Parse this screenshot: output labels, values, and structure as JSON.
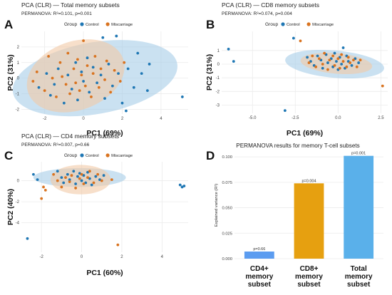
{
  "colors": {
    "control": "#1f77b4",
    "miscarriage": "#d9731f",
    "ellipse_control": "#a6cde8",
    "ellipse_miscarriage": "#f2c9a6",
    "grid": "#ebebeb",
    "bar_cd4": "#5b9cf0",
    "bar_cd8": "#e6a010",
    "bar_total": "#5ab0ea"
  },
  "legend": {
    "title": "Group",
    "items": [
      {
        "label": "Control",
        "color_key": "control"
      },
      {
        "label": "Miscarriage",
        "color_key": "miscarriage"
      }
    ]
  },
  "chart_data": [
    {
      "type": "scatter",
      "panel_letter": "A",
      "title": "PCA (CLR) — Total memory subsets",
      "subtitle": "PERMANOVA: R²=0.101, p=0.001",
      "xlabel": "PC1 (69%)",
      "ylabel": "PC2 (31%)",
      "xlim": [
        -3.2,
        5.4
      ],
      "ylim": [
        -2.3,
        3.0
      ],
      "xticks": [
        -2,
        0,
        2,
        4
      ],
      "yticks": [
        -2,
        -1,
        0,
        1,
        2
      ],
      "grid": true,
      "legend_position": "top",
      "ellipses": [
        {
          "group": "Control",
          "cx": 0.6,
          "cy": 0.0,
          "rx": 4.3,
          "ry": 2.3,
          "angle": 10
        },
        {
          "group": "Miscarriage",
          "cx": -0.4,
          "cy": 0.15,
          "rx": 2.6,
          "ry": 2.2,
          "angle": 20
        }
      ],
      "series": [
        {
          "name": "Control",
          "points": [
            [
              -2.3,
              -0.6
            ],
            [
              -1.9,
              0.3
            ],
            [
              -1.7,
              -1.1
            ],
            [
              -1.5,
              -0.4
            ],
            [
              -1.3,
              0.6
            ],
            [
              -1.0,
              -1.6
            ],
            [
              -0.8,
              0.2
            ],
            [
              -0.6,
              -0.7
            ],
            [
              -0.4,
              1.0
            ],
            [
              -0.3,
              -1.4
            ],
            [
              -0.1,
              0.4
            ],
            [
              0.0,
              -0.2
            ],
            [
              0.2,
              1.3
            ],
            [
              0.3,
              -0.9
            ],
            [
              0.5,
              0.7
            ],
            [
              0.7,
              -0.3
            ],
            [
              0.9,
              0.2
            ],
            [
              1.0,
              2.6
            ],
            [
              1.1,
              -1.3
            ],
            [
              1.3,
              0.9
            ],
            [
              1.5,
              -0.5
            ],
            [
              1.7,
              2.7
            ],
            [
              1.8,
              0.3
            ],
            [
              2.0,
              -1.6
            ],
            [
              2.2,
              -2.1
            ],
            [
              2.3,
              0.6
            ],
            [
              2.6,
              -0.6
            ],
            [
              2.8,
              1.6
            ],
            [
              3.0,
              0.3
            ],
            [
              3.3,
              -0.8
            ],
            [
              3.4,
              0.9
            ],
            [
              5.1,
              -1.2
            ]
          ]
        },
        {
          "name": "Miscarriage",
          "points": [
            [
              -2.6,
              -0.2
            ],
            [
              -2.4,
              0.4
            ],
            [
              -2.0,
              -0.8
            ],
            [
              -1.8,
              1.4
            ],
            [
              -1.6,
              0.0
            ],
            [
              -1.4,
              -1.2
            ],
            [
              -1.2,
              1.0
            ],
            [
              -1.1,
              0.1
            ],
            [
              -0.9,
              -0.4
            ],
            [
              -0.8,
              1.6
            ],
            [
              -0.7,
              -1.0
            ],
            [
              -0.5,
              0.6
            ],
            [
              -0.4,
              -0.3
            ],
            [
              -0.3,
              1.2
            ],
            [
              -0.2,
              -0.8
            ],
            [
              -0.1,
              0.2
            ],
            [
              0.0,
              2.4
            ],
            [
              0.1,
              -0.5
            ],
            [
              0.2,
              0.8
            ],
            [
              0.4,
              -1.2
            ],
            [
              0.5,
              0.3
            ],
            [
              0.6,
              1.4
            ],
            [
              0.8,
              -0.6
            ],
            [
              0.9,
              0.6
            ],
            [
              1.1,
              -0.1
            ],
            [
              1.2,
              1.1
            ],
            [
              1.4,
              -0.9
            ],
            [
              1.6,
              0.5
            ],
            [
              1.9,
              -0.2
            ],
            [
              2.1,
              1.0
            ]
          ]
        }
      ]
    },
    {
      "type": "scatter",
      "panel_letter": "B",
      "title": "PCA (CLR) — CD8 memory subsets",
      "subtitle": "PERMANOVA: R²=0.074, p=0.004",
      "xlabel": "PC1 (69%)",
      "ylabel": "PC2 (31%)",
      "xlim": [
        -6.8,
        2.9
      ],
      "ylim": [
        -3.6,
        2.4
      ],
      "xticks": [
        -5.0,
        -2.5,
        0.0,
        2.5
      ],
      "xtick_labels": [
        "-5.0",
        "-2.5",
        "0.0",
        "2.5"
      ],
      "yticks": [
        -3,
        -2,
        -1,
        0,
        1
      ],
      "grid": true,
      "legend_position": "top",
      "ellipses": [
        {
          "group": "Control",
          "cx": -0.2,
          "cy": 0.0,
          "rx": 2.9,
          "ry": 1.0,
          "angle": -5
        },
        {
          "group": "Miscarriage",
          "cx": -0.1,
          "cy": 0.05,
          "rx": 2.1,
          "ry": 0.75,
          "angle": -5
        }
      ],
      "series": [
        {
          "name": "Control",
          "points": [
            [
              -6.4,
              1.1
            ],
            [
              -6.1,
              0.2
            ],
            [
              -3.1,
              -3.4
            ],
            [
              -2.6,
              1.9
            ],
            [
              -1.8,
              0.5
            ],
            [
              -1.6,
              0.2
            ],
            [
              -1.4,
              -0.1
            ],
            [
              -1.2,
              0.6
            ],
            [
              -1.0,
              0.3
            ],
            [
              -0.9,
              -0.3
            ],
            [
              -0.7,
              0.7
            ],
            [
              -0.6,
              0.1
            ],
            [
              -0.4,
              0.4
            ],
            [
              -0.3,
              -0.2
            ],
            [
              -0.2,
              0.8
            ],
            [
              -0.1,
              0.2
            ],
            [
              0.0,
              -0.4
            ],
            [
              0.1,
              0.5
            ],
            [
              0.2,
              0.0
            ],
            [
              0.3,
              1.2
            ],
            [
              0.4,
              -0.3
            ],
            [
              0.5,
              0.6
            ],
            [
              0.6,
              0.2
            ],
            [
              0.8,
              -0.1
            ],
            [
              1.0,
              0.4
            ],
            [
              1.2,
              0.1
            ]
          ]
        },
        {
          "name": "Miscarriage",
          "points": [
            [
              -2.2,
              1.7
            ],
            [
              -1.7,
              0.1
            ],
            [
              -1.5,
              0.6
            ],
            [
              -1.3,
              -0.2
            ],
            [
              -1.1,
              0.4
            ],
            [
              -0.9,
              0.0
            ],
            [
              -0.8,
              0.8
            ],
            [
              -0.6,
              -0.4
            ],
            [
              -0.5,
              0.3
            ],
            [
              -0.3,
              0.6
            ],
            [
              -0.2,
              -0.1
            ],
            [
              0.0,
              0.4
            ],
            [
              0.1,
              -0.3
            ],
            [
              0.2,
              0.7
            ],
            [
              0.3,
              0.2
            ],
            [
              0.5,
              -0.2
            ],
            [
              0.6,
              0.5
            ],
            [
              0.7,
              0.1
            ],
            [
              0.9,
              0.3
            ],
            [
              1.1,
              -0.2
            ],
            [
              1.3,
              0.3
            ],
            [
              2.6,
              -1.6
            ]
          ]
        }
      ]
    },
    {
      "type": "scatter",
      "panel_letter": "C",
      "title": "PCA (CLR) — CD4 memory subsets",
      "subtitle": "PERMANOVA: R²=0.007, p=0.66",
      "xlabel": "PC1 (60%)",
      "ylabel": "PC2 (40%)",
      "xlim": [
        -3.0,
        5.3
      ],
      "ylim": [
        -6.8,
        1.8
      ],
      "xticks": [
        -2,
        0,
        2,
        4
      ],
      "yticks": [
        -4,
        -2,
        0
      ],
      "grid": true,
      "legend_position": "top",
      "ellipses": [
        {
          "group": "Control",
          "cx": -0.1,
          "cy": 0.3,
          "rx": 2.3,
          "ry": 0.9,
          "angle": 0
        },
        {
          "group": "Miscarriage",
          "cx": -0.05,
          "cy": 0.1,
          "rx": 1.5,
          "ry": 1.4,
          "angle": 0
        }
      ],
      "series": [
        {
          "name": "Control",
          "points": [
            [
              -2.7,
              -5.5
            ],
            [
              -2.4,
              0.6
            ],
            [
              -2.2,
              0.1
            ],
            [
              -1.2,
              0.9
            ],
            [
              -1.0,
              0.3
            ],
            [
              -0.9,
              -0.2
            ],
            [
              -0.7,
              0.6
            ],
            [
              -0.6,
              0.1
            ],
            [
              -0.4,
              0.9
            ],
            [
              -0.3,
              -0.3
            ],
            [
              -0.2,
              0.4
            ],
            [
              -0.1,
              0.7
            ],
            [
              0.0,
              0.0
            ],
            [
              0.1,
              0.5
            ],
            [
              0.2,
              -0.2
            ],
            [
              0.3,
              0.8
            ],
            [
              0.4,
              0.2
            ],
            [
              0.5,
              -0.4
            ],
            [
              0.7,
              0.4
            ],
            [
              0.9,
              0.1
            ],
            [
              1.1,
              0.5
            ],
            [
              4.9,
              -0.4
            ],
            [
              5.0,
              -0.6
            ],
            [
              5.1,
              -0.5
            ]
          ]
        },
        {
          "name": "Miscarriage",
          "points": [
            [
              -2.0,
              -1.7
            ],
            [
              -1.9,
              -0.6
            ],
            [
              -1.8,
              -0.9
            ],
            [
              -1.4,
              0.6
            ],
            [
              -1.2,
              0.0
            ],
            [
              -1.0,
              -0.6
            ],
            [
              -0.8,
              0.3
            ],
            [
              -0.6,
              -0.1
            ],
            [
              -0.5,
              0.5
            ],
            [
              -0.3,
              -0.7
            ],
            [
              -0.1,
              0.2
            ],
            [
              0.0,
              0.6
            ],
            [
              0.1,
              -0.3
            ],
            [
              0.3,
              0.3
            ],
            [
              0.4,
              0.9
            ],
            [
              0.6,
              -0.2
            ],
            [
              0.8,
              0.6
            ],
            [
              1.0,
              0.0
            ],
            [
              1.5,
              0.1
            ],
            [
              1.8,
              -6.1
            ]
          ]
        }
      ]
    },
    {
      "type": "bar",
      "panel_letter": "D",
      "title": "PERMANOVA results for memory T-cell subsets",
      "ylabel": "Explained variance (R²)",
      "categories": [
        "CD4+ memory subset",
        "CD8+ memory subset",
        "Total memory subset"
      ],
      "category_lines": [
        [
          "CD4+",
          "memory",
          "subset"
        ],
        [
          "CD8+",
          "memory",
          "subset"
        ],
        [
          "Total",
          "memory",
          "subset"
        ]
      ],
      "values": [
        0.007,
        0.074,
        0.101
      ],
      "data_labels": [
        "p=0.66",
        "p=0.004",
        "p=0.001"
      ],
      "bar_color_keys": [
        "bar_cd4",
        "bar_cd8",
        "bar_total"
      ],
      "ylim": [
        0,
        0.105
      ],
      "yticks": [
        0,
        0.025,
        0.05,
        0.075,
        0.1
      ],
      "ytick_labels": [
        "0.000",
        "0.025",
        "0.050",
        "0.075",
        "0.100"
      ],
      "grid": true
    }
  ]
}
